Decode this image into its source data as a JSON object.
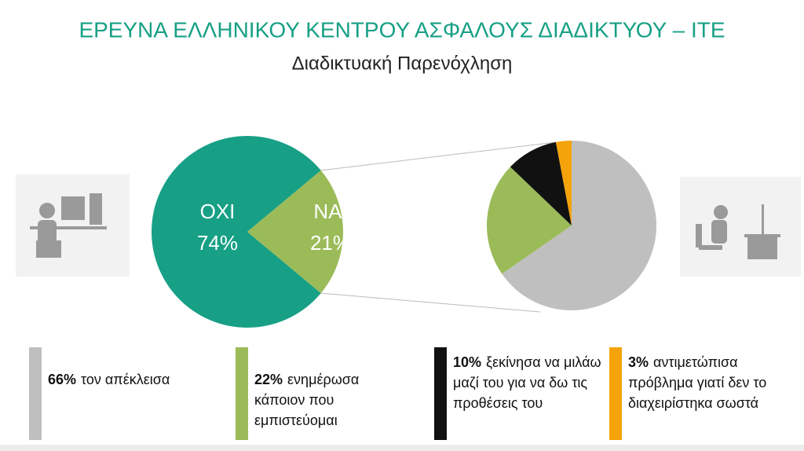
{
  "chart_data": {
    "type": "pie-of-pie",
    "title": "ΕΡΕΥΝΑ ΕΛΛΗΝΙΚΟΥ ΚΕΝΤΡΟΥ ΑΣΦΑΛΟΥΣ ΔΙΑΔΙΚΤΥΟΥ – ΙΤΕ",
    "subtitle": "Διαδικτυακή Παρενόχληση",
    "main": {
      "categories": [
        "ΟΧΙ",
        "ΝΑΙ"
      ],
      "values": [
        74,
        21
      ],
      "value_labels": [
        "74%",
        "21%"
      ],
      "colors": [
        "#17a085",
        "#9bbb59"
      ]
    },
    "detail": {
      "categories": [
        "τον απέκλεισα",
        "ενημέρωσα κάποιον που εμπιστεύομαι",
        "ξεκίνησα να μιλάω μαζί του για να δω τις προθέσεις του",
        "αντιμετώπισα πρόβλημα γιατί δεν το διαχειρίστηκα σωστά"
      ],
      "values": [
        66,
        22,
        10,
        3
      ],
      "value_labels": [
        "66%",
        "22%",
        "10%",
        "3%"
      ],
      "colors": [
        "#bfbfbf",
        "#9bbb59",
        "#111111",
        "#f5a30a"
      ]
    }
  }
}
